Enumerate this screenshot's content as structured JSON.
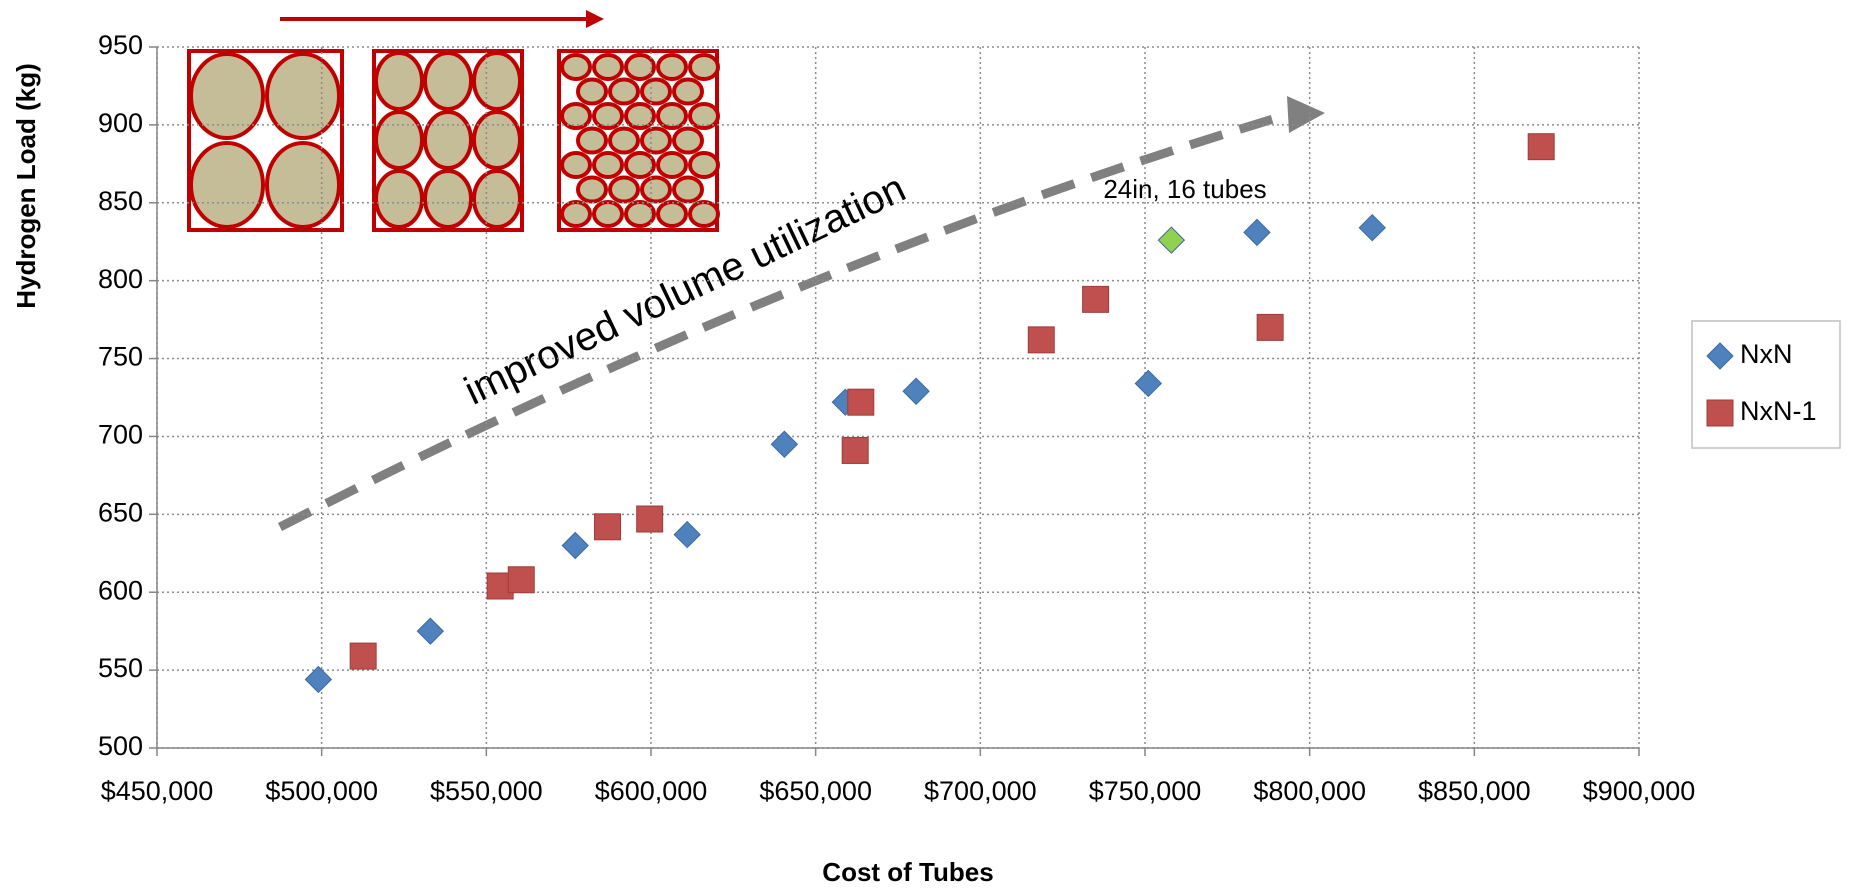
{
  "chart_data": {
    "type": "scatter",
    "x_label": "Cost of Tubes",
    "y_label": "Hydrogen Load (kg)",
    "annotations": [
      "improved volume utilization",
      "24in, 16 tubes"
    ],
    "xlim": [
      450000,
      900000
    ],
    "ylim": [
      500,
      950
    ],
    "xticks": [
      {
        "value": 450000,
        "label": "$450,000"
      },
      {
        "value": 500000,
        "label": "$500,000"
      },
      {
        "value": 550000,
        "label": "$550,000"
      },
      {
        "value": 600000,
        "label": "$600,000"
      },
      {
        "value": 650000,
        "label": "$650,000"
      },
      {
        "value": 700000,
        "label": "$700,000"
      },
      {
        "value": 750000,
        "label": "$750,000"
      },
      {
        "value": 800000,
        "label": "$800,000"
      },
      {
        "value": 850000,
        "label": "$850,000"
      },
      {
        "value": 900000,
        "label": "$900,000"
      }
    ],
    "yticks": [
      500,
      550,
      600,
      650,
      700,
      750,
      800,
      850,
      900,
      950
    ],
    "grid": true,
    "legend": "right",
    "series": [
      {
        "name": "NxN",
        "color": "#4f81bd",
        "marker": "diamond",
        "x": [
          499000,
          533000,
          577000,
          611000,
          640500,
          659000,
          680500,
          751000,
          784000,
          819000,
          758000
        ],
        "values": [
          544,
          575,
          630,
          637,
          695,
          722,
          729,
          734,
          831,
          834,
          826
        ],
        "colors": [
          "#4f81bd",
          "#4f81bd",
          "#4f81bd",
          "#4f81bd",
          "#4f81bd",
          "#4f81bd",
          "#4f81bd",
          "#4f81bd",
          "#4f81bd",
          "#4f81bd",
          "#92d050"
        ]
      },
      {
        "name": "NxN-1",
        "color": "#c0504d",
        "marker": "square",
        "x": [
          512600,
          554200,
          560600,
          586800,
          599600,
          662000,
          663700,
          718500,
          735000,
          788000,
          870300
        ],
        "values": [
          559,
          604,
          608,
          642,
          647,
          691,
          722,
          762,
          788,
          770,
          886
        ]
      }
    ]
  }
}
